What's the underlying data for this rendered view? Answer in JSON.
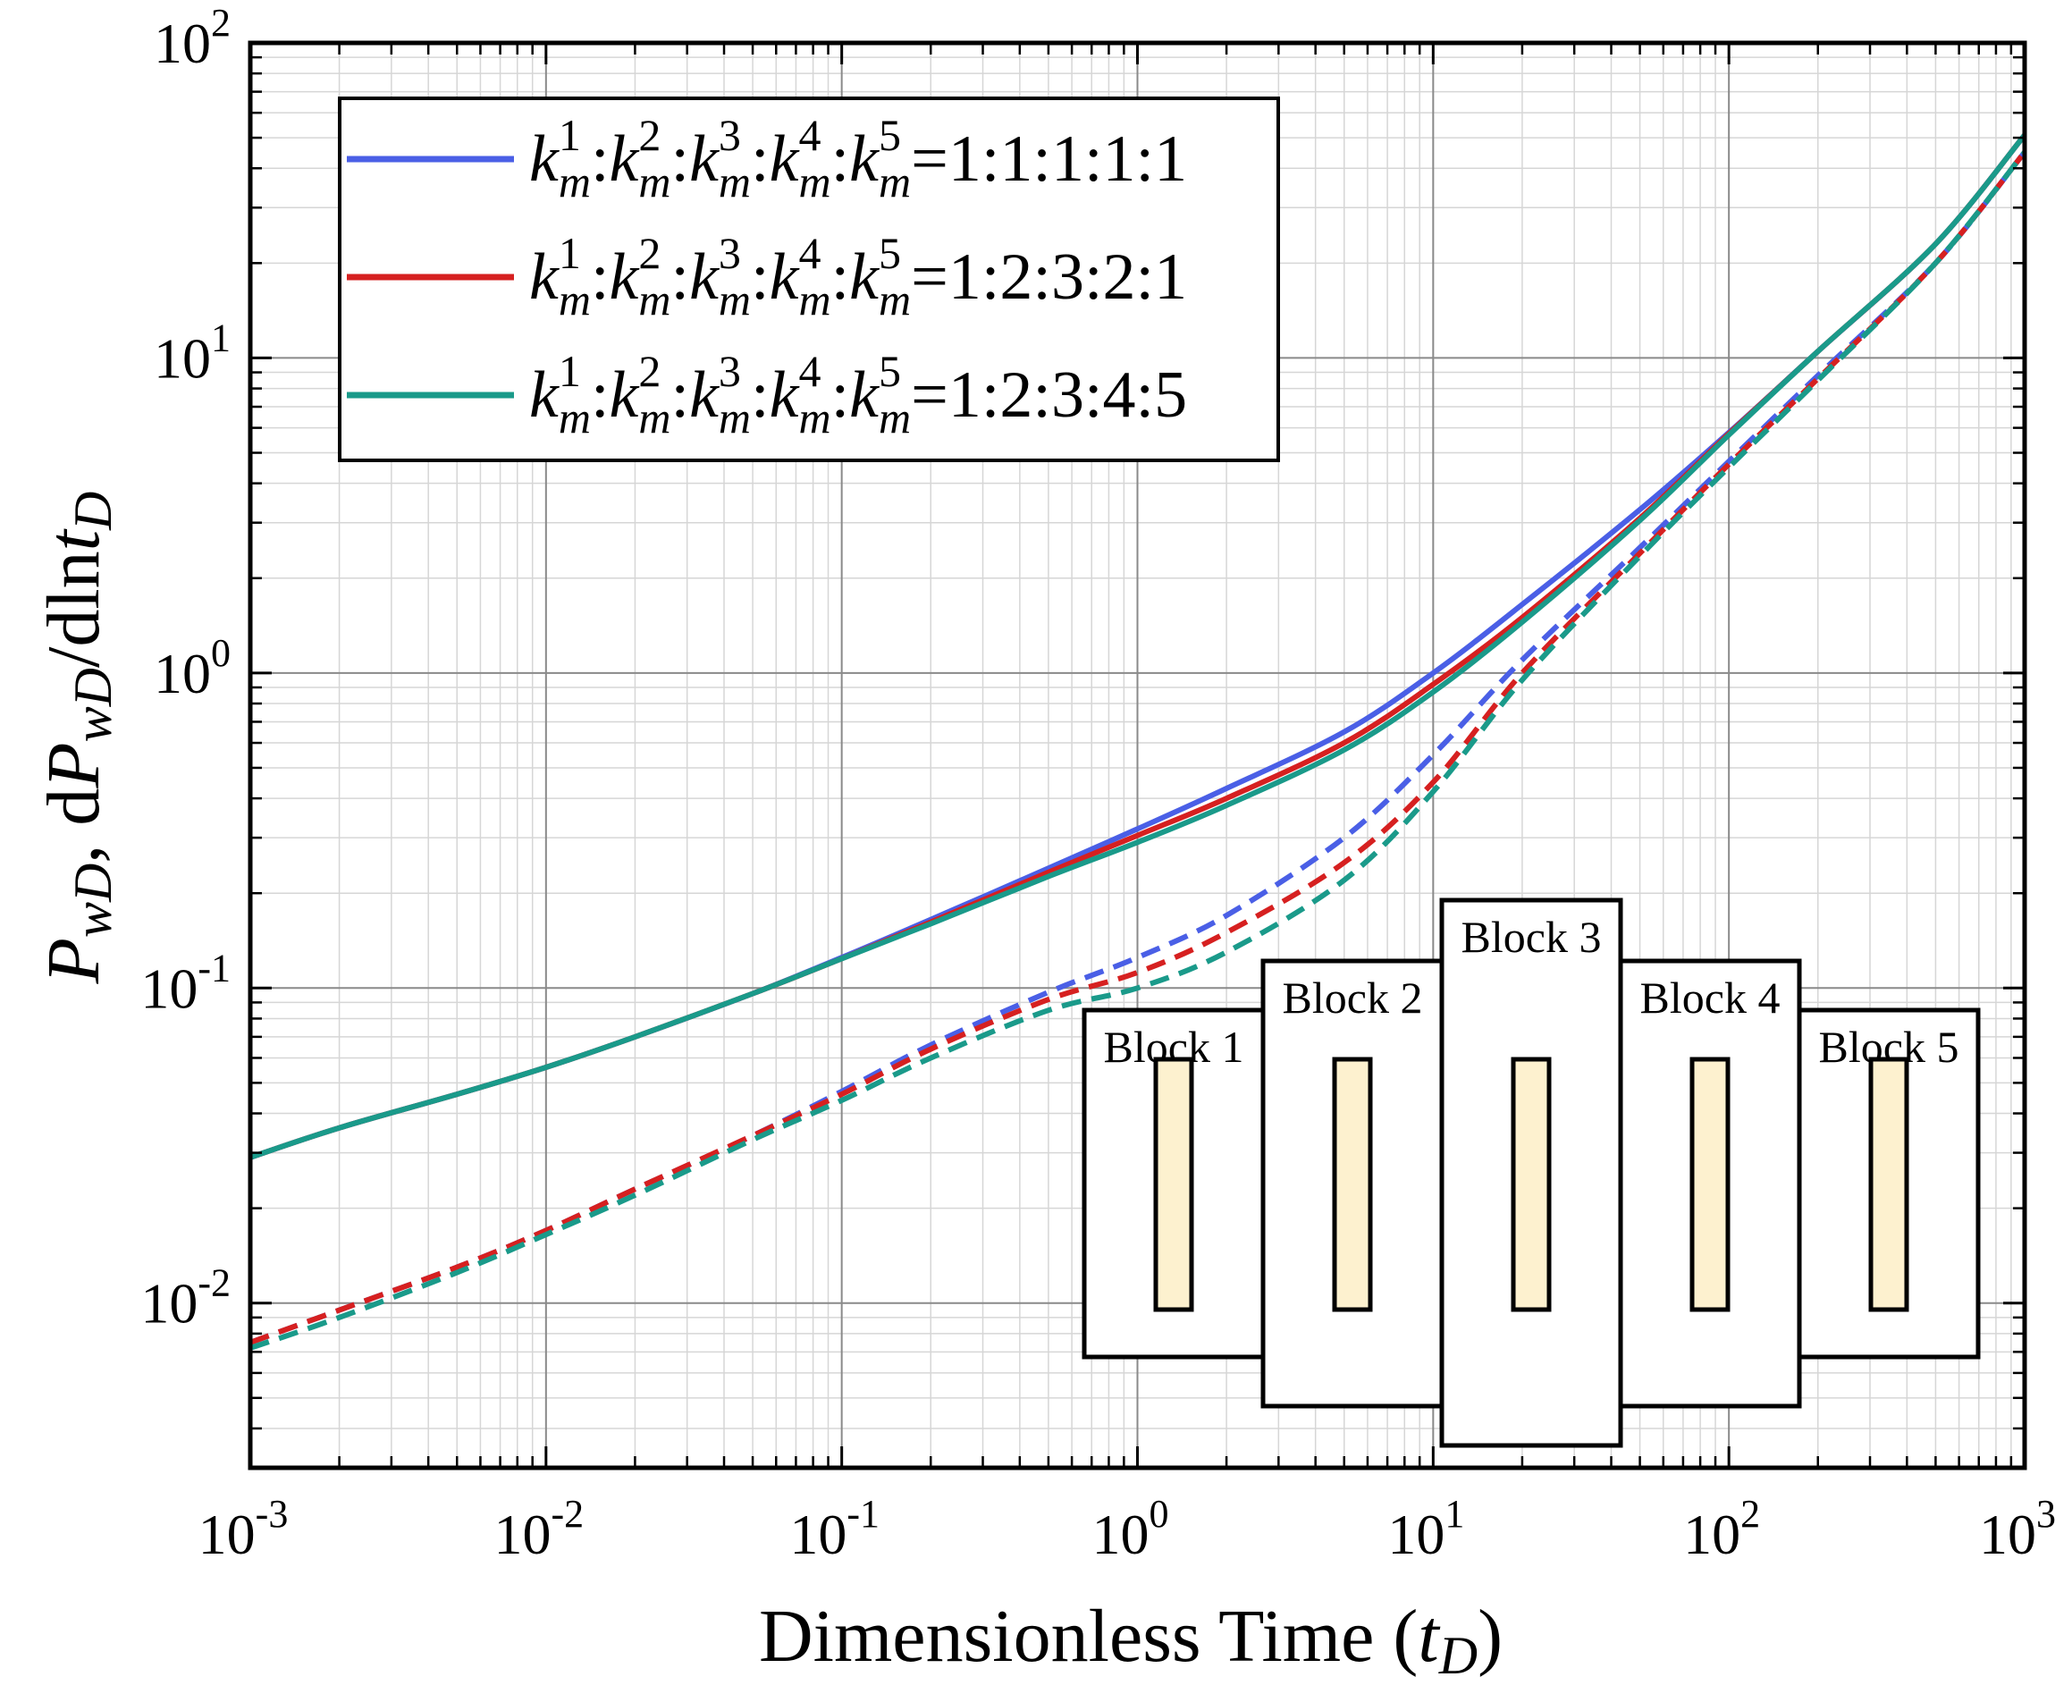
{
  "chart_data": {
    "type": "line",
    "xscale": "log",
    "yscale": "log",
    "xlim": [
      0.001,
      1000
    ],
    "ylim": [
      0.003,
      100
    ],
    "xticks": [
      {
        "base": "10",
        "exp": "-3"
      },
      {
        "base": "10",
        "exp": "-2"
      },
      {
        "base": "10",
        "exp": "-1"
      },
      {
        "base": "10",
        "exp": "0"
      },
      {
        "base": "10",
        "exp": "1"
      },
      {
        "base": "10",
        "exp": "2"
      },
      {
        "base": "10",
        "exp": "3"
      }
    ],
    "yticks": [
      {
        "base": "10",
        "exp": "-2"
      },
      {
        "base": "10",
        "exp": "-1"
      },
      {
        "base": "10",
        "exp": "0"
      },
      {
        "base": "10",
        "exp": "1"
      },
      {
        "base": "10",
        "exp": "2"
      }
    ],
    "xlabel": {
      "main": "Dimensionless Time (",
      "var": "t",
      "sub": "D",
      "close": ")"
    },
    "ylabel": {
      "p1": "P",
      "p1sub": "wD",
      "sep": ", d",
      "p2": "P",
      "p2sub": "wD",
      "tail": "/dln",
      "t": "t",
      "tsub": "D"
    },
    "grid": true,
    "legend": {
      "position": "top-left",
      "items": [
        {
          "text": "=1:1:1:1:1",
          "color": "#4a5fe6",
          "series": "solid-1"
        },
        {
          "text": "=1:2:3:2:1",
          "color": "#d62020",
          "series": "solid-2"
        },
        {
          "text": "=1:2:3:4:5",
          "color": "#1a9a8a",
          "series": "solid-3"
        }
      ],
      "k": "k",
      "sub": "m",
      "sups": [
        "1",
        "2",
        "3",
        "4",
        "5"
      ]
    },
    "x": [
      0.001,
      0.002,
      0.005,
      0.01,
      0.02,
      0.05,
      0.1,
      0.2,
      0.5,
      1,
      2,
      5,
      10,
      20,
      50,
      100,
      200,
      500,
      1000
    ],
    "series": [
      {
        "name": "PwD 1:1:1:1:1",
        "style": "solid",
        "color": "#4a5fe6",
        "values": [
          0.029,
          0.036,
          0.046,
          0.056,
          0.07,
          0.096,
          0.125,
          0.165,
          0.24,
          0.32,
          0.43,
          0.65,
          1.0,
          1.65,
          3.3,
          5.8,
          10.5,
          23,
          51
        ]
      },
      {
        "name": "PwD 1:2:3:2:1",
        "style": "solid",
        "color": "#d62020",
        "values": [
          0.029,
          0.036,
          0.046,
          0.056,
          0.07,
          0.096,
          0.124,
          0.162,
          0.233,
          0.305,
          0.4,
          0.6,
          0.92,
          1.5,
          3.1,
          5.75,
          10.5,
          23,
          51
        ]
      },
      {
        "name": "PwD 1:2:3:4:5",
        "style": "solid",
        "color": "#1a9a8a",
        "values": [
          0.029,
          0.036,
          0.046,
          0.056,
          0.07,
          0.096,
          0.124,
          0.16,
          0.226,
          0.29,
          0.38,
          0.57,
          0.87,
          1.45,
          3.05,
          5.7,
          10.5,
          23,
          51
        ]
      },
      {
        "name": "dPwD/dlntD 1:1:1:1:1",
        "style": "dashed",
        "color": "#4a5fe6",
        "values": [
          0.0075,
          0.0095,
          0.013,
          0.017,
          0.023,
          0.034,
          0.047,
          0.066,
          0.097,
          0.125,
          0.17,
          0.3,
          0.55,
          1.1,
          2.5,
          4.7,
          8.8,
          20,
          45
        ]
      },
      {
        "name": "dPwD/dlntD 1:2:3:2:1",
        "style": "dashed",
        "color": "#d62020",
        "values": [
          0.0075,
          0.0095,
          0.013,
          0.017,
          0.023,
          0.034,
          0.046,
          0.064,
          0.092,
          0.112,
          0.15,
          0.25,
          0.45,
          1.0,
          2.4,
          4.6,
          8.6,
          20,
          45
        ]
      },
      {
        "name": "dPwD/dlntD 1:2:3:4:5",
        "style": "dashed",
        "color": "#1a9a8a",
        "values": [
          0.0072,
          0.009,
          0.0125,
          0.0165,
          0.022,
          0.033,
          0.044,
          0.06,
          0.085,
          0.1,
          0.13,
          0.22,
          0.42,
          0.95,
          2.35,
          4.5,
          8.5,
          20,
          45
        ]
      }
    ],
    "inset_blocks": [
      {
        "label": "Block 1"
      },
      {
        "label": "Block 2"
      },
      {
        "label": "Block 3"
      },
      {
        "label": "Block 4"
      },
      {
        "label": "Block 5"
      }
    ],
    "inset_fracture_color": "#fdf1cf"
  }
}
